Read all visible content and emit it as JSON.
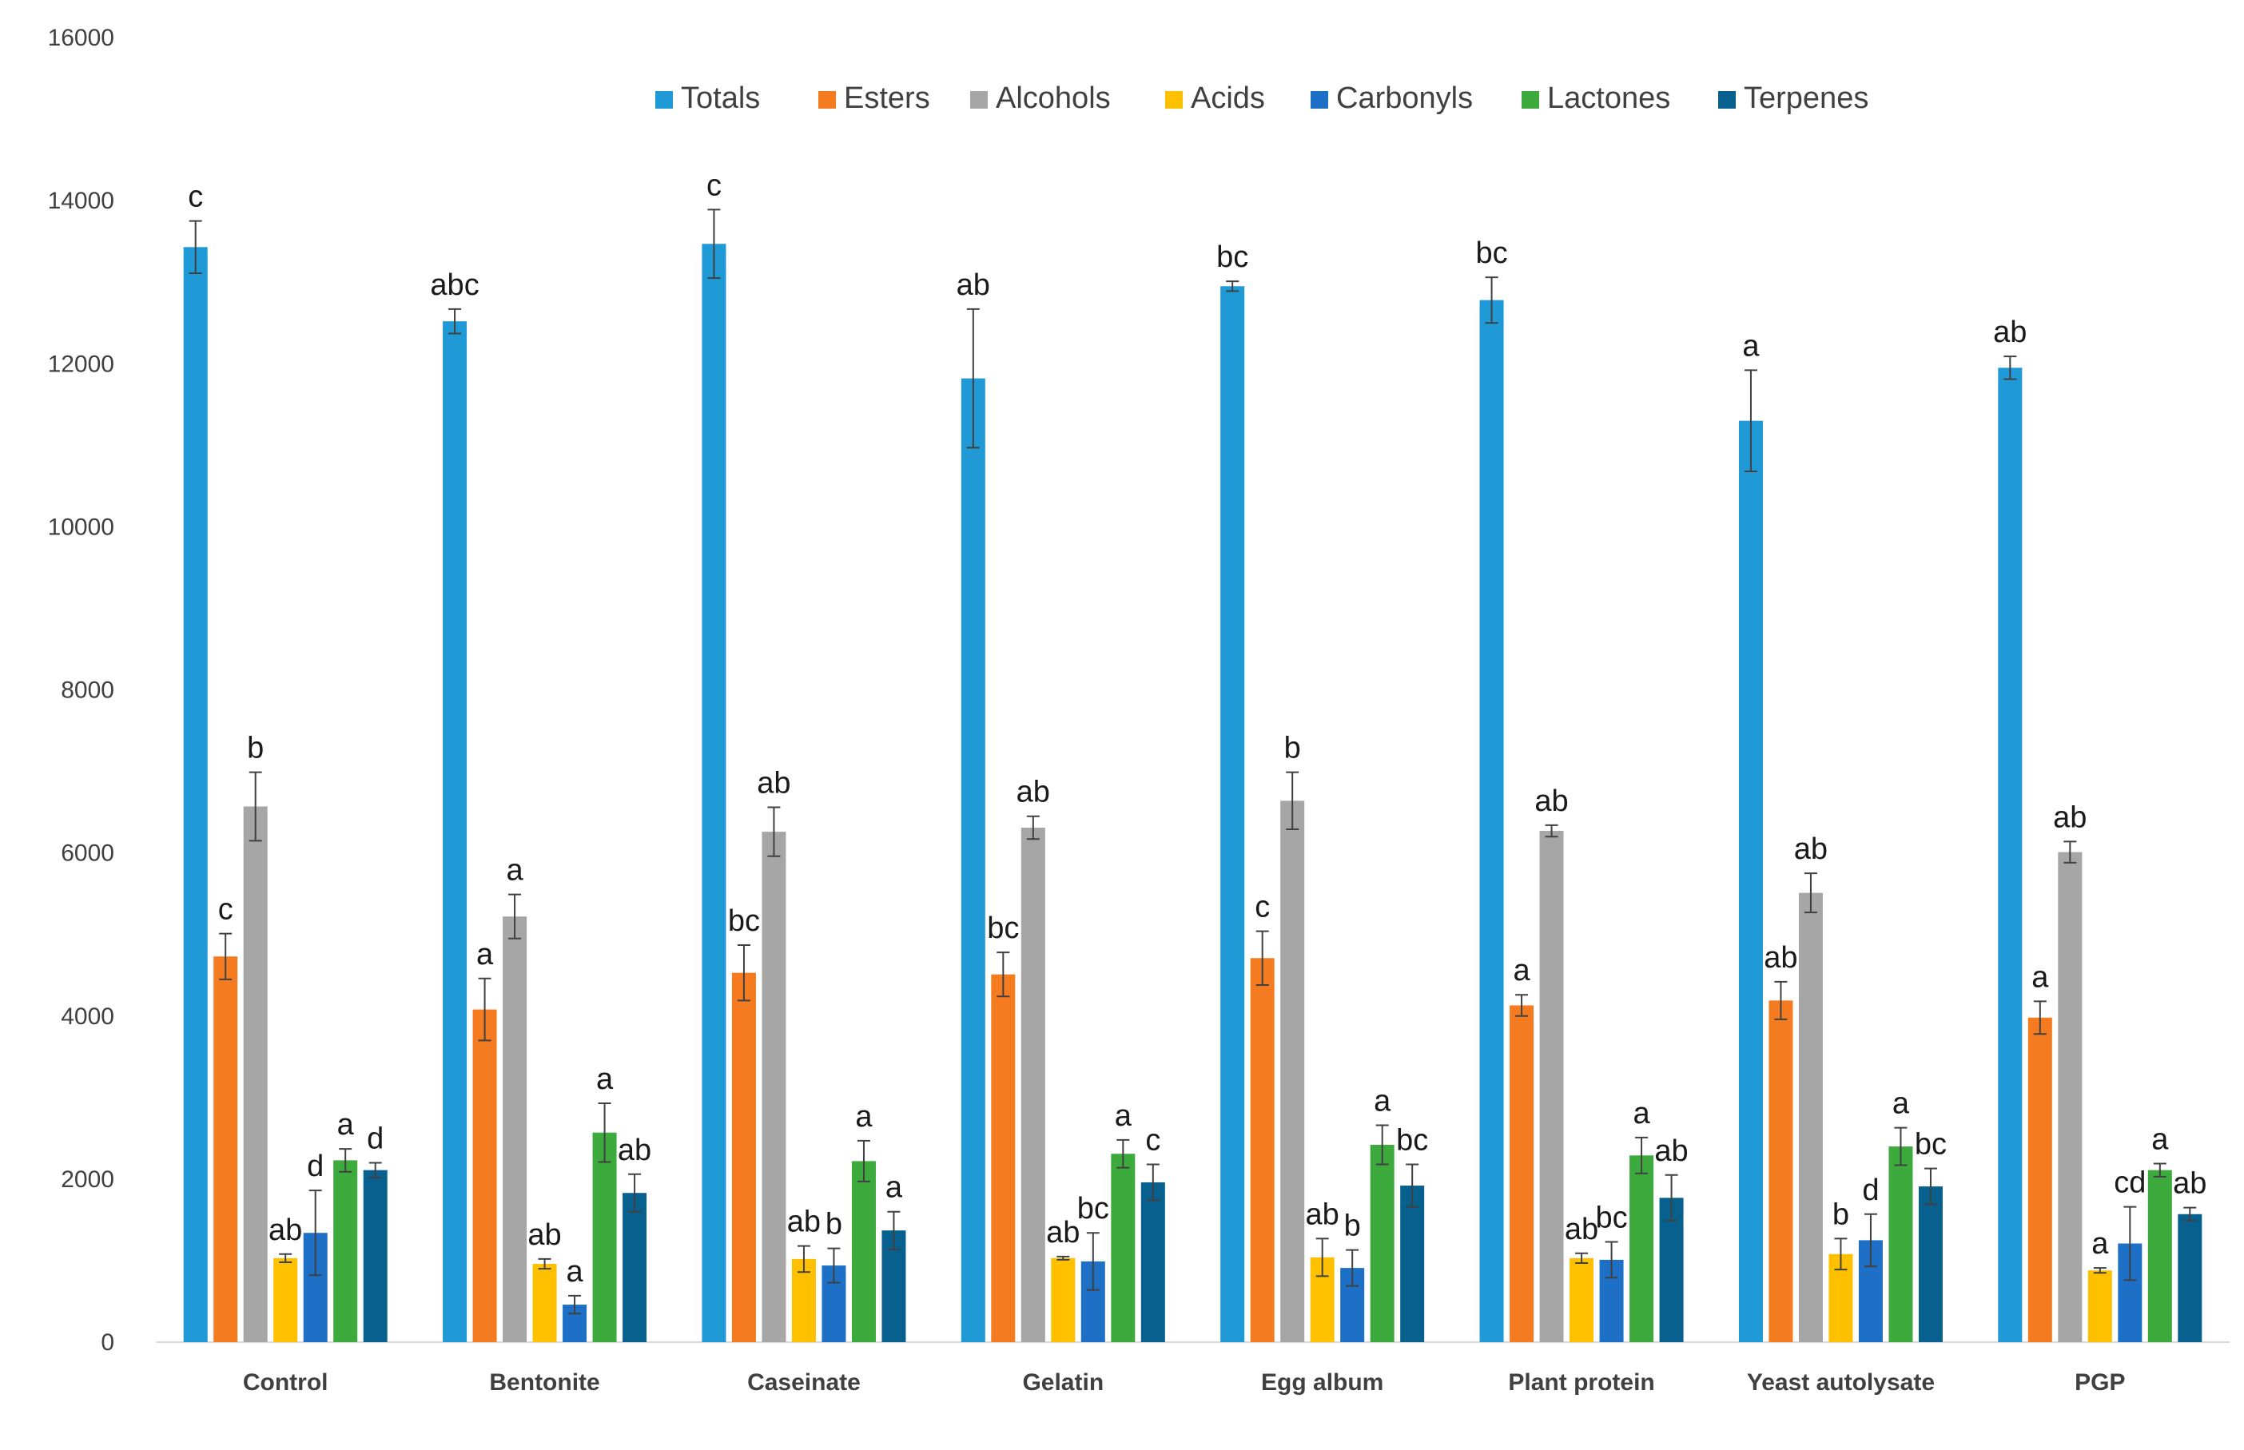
{
  "chart_data": {
    "type": "bar",
    "title": "",
    "xlabel": "",
    "ylabel": "",
    "ylim": [
      0,
      16000
    ],
    "yticks": [
      0,
      2000,
      4000,
      6000,
      8000,
      10000,
      12000,
      14000,
      16000
    ],
    "grid": false,
    "legend_position": "top",
    "categories": [
      "Control",
      "Bentonite",
      "Caseinate",
      "Gelatin",
      "Egg album",
      "Plant protein",
      "Yeast autolysate",
      "PGP"
    ],
    "series": [
      {
        "name": "Totals",
        "color": "#1f9ad6",
        "values": [
          13430,
          12520,
          13470,
          11820,
          12950,
          12780,
          11300,
          11950
        ],
        "errors": [
          320,
          150,
          420,
          850,
          60,
          280,
          620,
          140
        ],
        "letters": [
          "c",
          "abc",
          "c",
          "ab",
          "bc",
          "bc",
          "a",
          "ab"
        ]
      },
      {
        "name": "Esters",
        "color": "#f47b20",
        "values": [
          4730,
          4080,
          4530,
          4510,
          4710,
          4130,
          4190,
          3980
        ],
        "errors": [
          280,
          380,
          340,
          270,
          330,
          130,
          230,
          200
        ],
        "letters": [
          "c",
          "a",
          "bc",
          "bc",
          "c",
          "a",
          "ab",
          "a"
        ]
      },
      {
        "name": "Alcohols",
        "color": "#a6a6a6",
        "values": [
          6570,
          5220,
          6260,
          6310,
          6640,
          6270,
          5510,
          6010
        ],
        "errors": [
          420,
          270,
          300,
          140,
          350,
          70,
          240,
          130
        ],
        "letters": [
          "b",
          "a",
          "ab",
          "ab",
          "b",
          "ab",
          "ab",
          "ab"
        ]
      },
      {
        "name": "Acids",
        "color": "#ffc000",
        "values": [
          1030,
          960,
          1020,
          1030,
          1040,
          1030,
          1080,
          880
        ],
        "errors": [
          50,
          60,
          160,
          20,
          230,
          60,
          190,
          30
        ],
        "letters": [
          "ab",
          "ab",
          "ab",
          "ab",
          "ab",
          "ab",
          "b",
          "a"
        ]
      },
      {
        "name": "Carbonyls",
        "color": "#1e6fc6",
        "values": [
          1340,
          460,
          940,
          990,
          910,
          1010,
          1250,
          1210
        ],
        "errors": [
          520,
          110,
          210,
          350,
          220,
          220,
          320,
          450
        ],
        "letters": [
          "d",
          "a",
          "b",
          "bc",
          "b",
          "bc",
          "d",
          "cd"
        ]
      },
      {
        "name": "Lactones",
        "color": "#3daa3d",
        "values": [
          2230,
          2570,
          2220,
          2310,
          2420,
          2290,
          2400,
          2110
        ],
        "errors": [
          140,
          360,
          250,
          170,
          240,
          220,
          230,
          80
        ],
        "letters": [
          "a",
          "a",
          "a",
          "a",
          "a",
          "a",
          "a",
          "a"
        ]
      },
      {
        "name": "Terpenes",
        "color": "#08608f",
        "values": [
          2110,
          1830,
          1370,
          1960,
          1920,
          1770,
          1910,
          1570
        ],
        "errors": [
          90,
          230,
          230,
          220,
          260,
          280,
          220,
          80
        ],
        "letters": [
          "d",
          "ab",
          "a",
          "c",
          "bc",
          "ab",
          "bc",
          "ab"
        ]
      }
    ]
  }
}
